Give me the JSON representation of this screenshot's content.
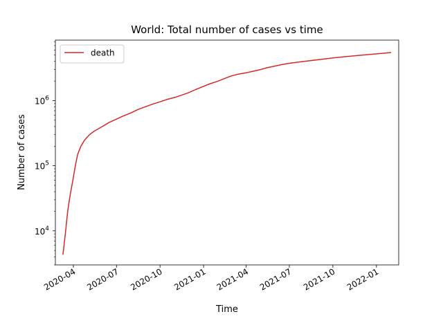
{
  "chart_data": {
    "type": "line",
    "title": "World: Total number of cases vs time",
    "xlabel": "Time",
    "ylabel": "Number of cases",
    "yscale": "log",
    "ylim": [
      3000,
      8500000
    ],
    "xlim": [
      "2020-02-23",
      "2022-02-17"
    ],
    "grid": false,
    "legend_position": "upper-left",
    "x_tick_labels": [
      "2020-04",
      "2020-07",
      "2020-10",
      "2021-01",
      "2021-04",
      "2021-07",
      "2021-10",
      "2022-01"
    ],
    "y_tick_labels": [
      {
        "base": "10",
        "exp": "4"
      },
      {
        "base": "10",
        "exp": "5"
      },
      {
        "base": "10",
        "exp": "6"
      }
    ],
    "series": [
      {
        "name": "death",
        "color": "#d62728",
        "x": [
          "2020-03-10",
          "2020-03-15",
          "2020-03-20",
          "2020-03-25",
          "2020-03-31",
          "2020-04-05",
          "2020-04-10",
          "2020-04-17",
          "2020-04-25",
          "2020-05-05",
          "2020-05-15",
          "2020-06-01",
          "2020-06-15",
          "2020-07-01",
          "2020-07-15",
          "2020-08-01",
          "2020-08-15",
          "2020-09-01",
          "2020-09-15",
          "2020-10-01",
          "2020-10-15",
          "2020-11-01",
          "2020-11-15",
          "2020-12-01",
          "2020-12-15",
          "2021-01-01",
          "2021-01-15",
          "2021-02-01",
          "2021-02-15",
          "2021-03-01",
          "2021-03-15",
          "2021-04-01",
          "2021-04-15",
          "2021-05-01",
          "2021-05-15",
          "2021-06-01",
          "2021-06-15",
          "2021-07-01",
          "2021-07-15",
          "2021-08-01",
          "2021-08-15",
          "2021-09-01",
          "2021-09-15",
          "2021-10-01",
          "2021-10-15",
          "2021-11-01",
          "2021-11-15",
          "2021-12-01",
          "2021-12-15",
          "2022-01-01",
          "2022-01-15",
          "2022-02-01"
        ],
        "values": [
          4300,
          9000,
          20000,
          35000,
          60000,
          98000,
          150000,
          200000,
          250000,
          300000,
          340000,
          400000,
          460000,
          520000,
          580000,
          650000,
          730000,
          810000,
          880000,
          960000,
          1040000,
          1120000,
          1210000,
          1330000,
          1480000,
          1660000,
          1820000,
          2000000,
          2200000,
          2400000,
          2550000,
          2680000,
          2820000,
          3000000,
          3200000,
          3400000,
          3580000,
          3750000,
          3870000,
          4000000,
          4120000,
          4250000,
          4380000,
          4520000,
          4650000,
          4770000,
          4880000,
          5000000,
          5100000,
          5230000,
          5340000,
          5480000
        ]
      }
    ]
  }
}
